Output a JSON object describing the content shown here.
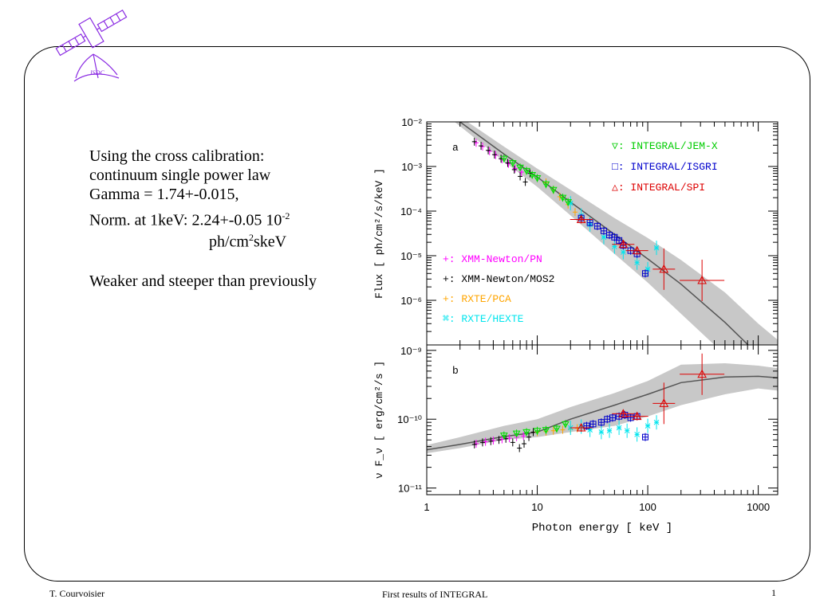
{
  "slide": {
    "text_lines": [
      "Using the cross calibration:",
      "continuum single power law",
      "Gamma = 1.74+-0.015,",
      "Norm. at 1keV: 2.24+-0.05 10",
      "ph/cm",
      "skeV",
      "Weaker and steeper than previously"
    ],
    "norm_exp": "-2",
    "unit_exp": "2",
    "logo_label": "ISDC",
    "footer_author": "T. Courvoisier",
    "footer_title": "First results of INTEGRAL",
    "page_number": "1"
  },
  "colors": {
    "pn": "#ff00ff",
    "mos2": "#000000",
    "pca": "#ffa500",
    "hexte": "#00e5ee",
    "jemx": "#00dd00",
    "isgri": "#0000cc",
    "spi": "#dd0000",
    "band": "#c8c8c8",
    "model": "#555555"
  },
  "chart_data": [
    {
      "type": "scatter",
      "panel_label": "a",
      "ylabel": "Flux [ ph/cm²/s/keV ]",
      "xscale": "log",
      "yscale": "log",
      "xlim": [
        1,
        1500
      ],
      "ylim": [
        1e-07,
        0.01
      ],
      "y_ticks": [
        "10⁻²",
        "10⁻³",
        "10⁻⁴",
        "10⁻⁵",
        "10⁻⁶"
      ],
      "legend_right": [
        {
          "symbol": "▽",
          "label": ": INTEGRAL/JEM-X",
          "color": "#00cc00"
        },
        {
          "symbol": "□",
          "label": ": INTEGRAL/ISGRI",
          "color": "#0000cc"
        },
        {
          "symbol": "△",
          "label": ": INTEGRAL/SPI",
          "color": "#dd0000"
        }
      ],
      "legend_left": [
        {
          "symbol": "+",
          "label": ": XMM-Newton/PN",
          "color": "#ff00ff"
        },
        {
          "symbol": "+",
          "label": ": XMM-Newton/MOS2",
          "color": "#000000"
        },
        {
          "symbol": "+",
          "label": ": RXTE/PCA",
          "color": "#ffa500"
        },
        {
          "symbol": "⌘",
          "label": ": RXTE/HEXTE",
          "color": "#00e5ee"
        }
      ],
      "model_band": {
        "x": [
          1,
          2,
          5,
          10,
          20,
          50,
          100,
          200,
          500,
          1000,
          1500
        ],
        "lower": [
          0.032,
          0.008,
          0.0013,
          0.00035,
          8e-05,
          1.1e-05,
          2.5e-06,
          5e-07,
          6e-08,
          1.5e-08,
          6e-09
        ],
        "center": [
          0.035,
          0.01,
          0.0019,
          0.00058,
          0.00016,
          3e-05,
          8.5e-06,
          2.3e-06,
          3.2e-07,
          6e-08,
          2.4e-08
        ],
        "upper": [
          0.038,
          0.013,
          0.0028,
          0.0009,
          0.0003,
          7e-05,
          2.5e-05,
          8e-06,
          1.5e-06,
          3e-07,
          1.3e-07
        ]
      },
      "series": [
        {
          "name": "XMM-Newton/PN",
          "marker": "cross",
          "x": [
            2.8,
            3.2,
            3.7,
            4.2,
            4.8,
            5.5,
            6.3,
            7.2
          ],
          "y": [
            0.0034,
            0.0028,
            0.0022,
            0.0018,
            0.00145,
            0.00115,
            0.0009,
            0.00075
          ]
        },
        {
          "name": "XMM-Newton/MOS2",
          "marker": "cross",
          "x": [
            2.7,
            3.1,
            3.6,
            4.1,
            4.7,
            5.4,
            6.2,
            7.0,
            7.8,
            8.6
          ],
          "y": [
            0.0036,
            0.0029,
            0.0023,
            0.00185,
            0.0015,
            0.0012,
            0.00085,
            0.0006,
            0.00045,
            0.0007
          ]
        },
        {
          "name": "RXTE/PCA",
          "marker": "cross",
          "x": [
            12,
            14,
            16,
            19,
            22,
            25
          ],
          "y": [
            0.00044,
            0.0003,
            0.00021,
            0.00014,
            9.5e-05,
            7e-05
          ]
        },
        {
          "name": "RXTE/HEXTE",
          "marker": "star",
          "x": [
            20,
            25,
            30,
            40,
            50,
            60,
            80,
            100,
            120
          ],
          "y": [
            0.00015,
            8e-05,
            5e-05,
            2.6e-05,
            1.6e-05,
            1.2e-05,
            7e-06,
            5e-06,
            1.5e-05
          ]
        },
        {
          "name": "INTEGRAL/JEM-X",
          "marker": "tri-down",
          "x": [
            5,
            6,
            7,
            8,
            9,
            10,
            12,
            14,
            17,
            19
          ],
          "y": [
            0.0015,
            0.0012,
            0.00095,
            0.0008,
            0.00065,
            0.00055,
            0.0004,
            0.0003,
            0.0002,
            0.00016
          ]
        },
        {
          "name": "INTEGRAL/ISGRI",
          "marker": "square",
          "x": [
            25,
            30,
            35,
            40,
            45,
            50,
            55,
            60,
            70,
            80,
            95
          ],
          "y": [
            7e-05,
            5.5e-05,
            4.6e-05,
            3.6e-05,
            2.9e-05,
            2.6e-05,
            2.2e-05,
            1.7e-05,
            1.3e-05,
            1.1e-05,
            4e-06
          ]
        },
        {
          "name": "INTEGRAL/SPI",
          "marker": "tri-up",
          "x": [
            25,
            60,
            80,
            140,
            310
          ],
          "y": [
            6.5e-05,
            1.8e-05,
            1.3e-05,
            5e-06,
            2.8e-06
          ]
        }
      ]
    },
    {
      "type": "scatter",
      "panel_label": "b",
      "ylabel": "ν F_ν [ erg/cm²/s ]",
      "xlabel": "Photon energy [ keV ]",
      "xscale": "log",
      "yscale": "log",
      "xlim": [
        1,
        1500
      ],
      "ylim": [
        8e-12,
        1.2e-09
      ],
      "x_ticks": [
        "1",
        "10",
        "100",
        "1000"
      ],
      "y_ticks": [
        "10⁻⁹",
        "10⁻¹⁰",
        "10⁻¹¹"
      ],
      "model_band": {
        "x": [
          1,
          2,
          5,
          10,
          20,
          50,
          100,
          200,
          500,
          1000,
          1500
        ],
        "lower": [
          3.2e-11,
          3.8e-11,
          5e-11,
          5.5e-11,
          6.5e-11,
          8e-11,
          1.1e-10,
          1.6e-10,
          2.3e-10,
          2.8e-10,
          2.6e-10
        ],
        "center": [
          3.6e-11,
          4.3e-11,
          5.6e-11,
          6.5e-11,
          1e-10,
          1.6e-10,
          2.3e-10,
          3.4e-10,
          4.1e-10,
          4.2e-10,
          4e-10
        ],
        "upper": [
          4.2e-11,
          5.5e-11,
          8e-11,
          1e-10,
          1.5e-10,
          2.4e-10,
          3.6e-10,
          6.2e-10,
          6.5e-10,
          6e-10,
          5.5e-10
        ]
      },
      "series": [
        {
          "name": "XMM-Newton/PN",
          "marker": "cross",
          "x": [
            2.8,
            3.4,
            4.0,
            4.8,
            5.6,
            6.5,
            7.5
          ],
          "y": [
            4.4e-11,
            4.7e-11,
            4.9e-11,
            5.1e-11,
            5.3e-11,
            5.5e-11,
            5.7e-11
          ]
        },
        {
          "name": "XMM-Newton/MOS2",
          "marker": "cross",
          "x": [
            2.7,
            3.2,
            3.8,
            4.5,
            5.2,
            6.0,
            6.9,
            7.6,
            8.4,
            9.2
          ],
          "y": [
            4.3e-11,
            4.6e-11,
            4.8e-11,
            5e-11,
            5.2e-11,
            4.6e-11,
            3.8e-11,
            4.4e-11,
            5.5e-11,
            6.5e-11
          ]
        },
        {
          "name": "RXTE/PCA",
          "marker": "cross",
          "x": [
            10,
            12,
            14,
            17,
            20,
            23
          ],
          "y": [
            6.5e-11,
            6.6e-11,
            6.8e-11,
            7e-11,
            7.2e-11,
            7.4e-11
          ]
        },
        {
          "name": "RXTE/HEXTE",
          "marker": "star",
          "x": [
            20,
            25,
            30,
            38,
            45,
            55,
            65,
            80,
            100,
            120
          ],
          "y": [
            7.5e-11,
            7.8e-11,
            7e-11,
            6.5e-11,
            6.8e-11,
            7.5e-11,
            6.8e-11,
            6e-11,
            8e-11,
            9e-11
          ]
        },
        {
          "name": "INTEGRAL/JEM-X",
          "marker": "tri-down",
          "x": [
            5,
            6.5,
            8,
            10,
            12,
            15,
            18
          ],
          "y": [
            5.8e-11,
            6.2e-11,
            6.5e-11,
            6.8e-11,
            7e-11,
            7.3e-11,
            8.5e-11
          ]
        },
        {
          "name": "INTEGRAL/ISGRI",
          "marker": "square",
          "x": [
            28,
            32,
            38,
            43,
            48,
            55,
            62,
            70,
            80,
            95
          ],
          "y": [
            8e-11,
            8.5e-11,
            9e-11,
            1e-10,
            1.05e-10,
            1.1e-10,
            1.15e-10,
            1.05e-10,
            1.1e-10,
            5.5e-11
          ]
        },
        {
          "name": "INTEGRAL/SPI",
          "marker": "tri-up",
          "x": [
            25,
            60,
            80,
            140,
            310
          ],
          "y": [
            7.5e-11,
            1.2e-10,
            1.1e-10,
            1.7e-10,
            4.5e-10
          ]
        }
      ]
    }
  ]
}
